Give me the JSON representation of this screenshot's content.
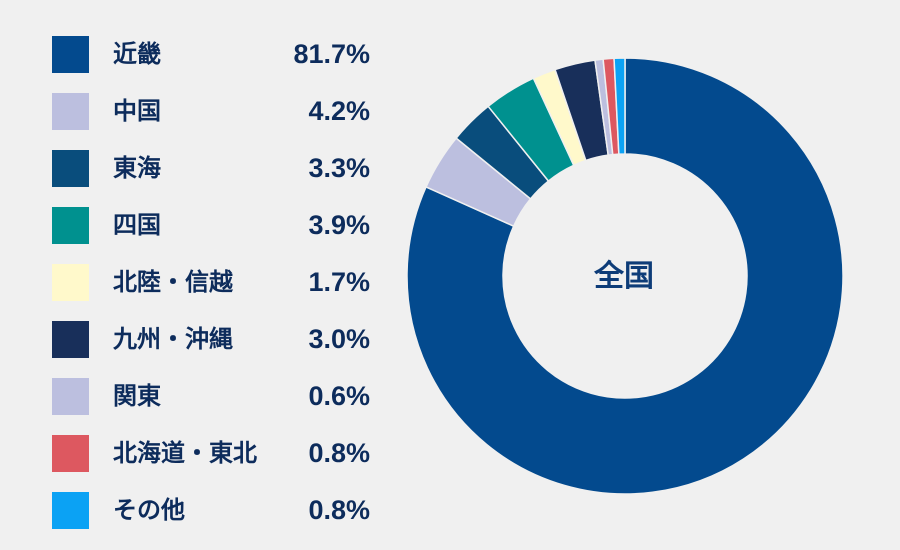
{
  "chart_data": {
    "type": "pie",
    "subtype": "donut",
    "center_label": "全国",
    "series": [
      {
        "name": "近畿",
        "value": 81.7,
        "value_label": "81.7%",
        "color": "#034a8e"
      },
      {
        "name": "中国",
        "value": 4.2,
        "value_label": "4.2%",
        "color": "#bcbfdf"
      },
      {
        "name": "東海",
        "value": 3.3,
        "value_label": "3.3%",
        "color": "#094d7c"
      },
      {
        "name": "四国",
        "value": 3.9,
        "value_label": "3.9%",
        "color": "#00918f"
      },
      {
        "name": "北陸・信越",
        "value": 1.7,
        "value_label": "1.7%",
        "color": "#fff9cb"
      },
      {
        "name": "九州・沖縄",
        "value": 3.0,
        "value_label": "3.0%",
        "color": "#182f5a"
      },
      {
        "name": "関東",
        "value": 0.6,
        "value_label": "0.6%",
        "color": "#bcbfdf"
      },
      {
        "name": "北海道・東北",
        "value": 0.8,
        "value_label": "0.8%",
        "color": "#dd5860"
      },
      {
        "name": "その他",
        "value": 0.8,
        "value_label": "0.8%",
        "color": "#0ba2f4"
      }
    ],
    "legend_position": "left",
    "background": "#f0f0f0"
  }
}
